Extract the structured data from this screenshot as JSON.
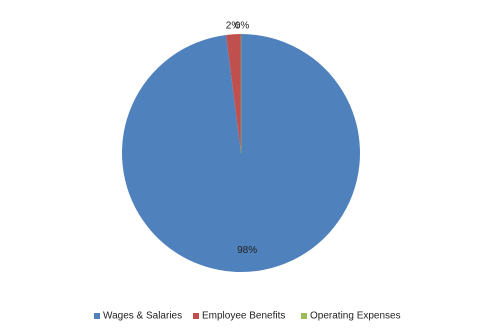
{
  "chart_data": {
    "type": "pie",
    "categories": [
      "Wages & Salaries",
      "Employee Benefits",
      "Operating Expenses"
    ],
    "values": [
      98,
      2,
      0
    ],
    "value_labels": [
      "98%",
      "2%",
      "0%"
    ],
    "colors": [
      "#4f81bd",
      "#c0504d",
      "#9bbb59"
    ],
    "legend": "bottom"
  }
}
